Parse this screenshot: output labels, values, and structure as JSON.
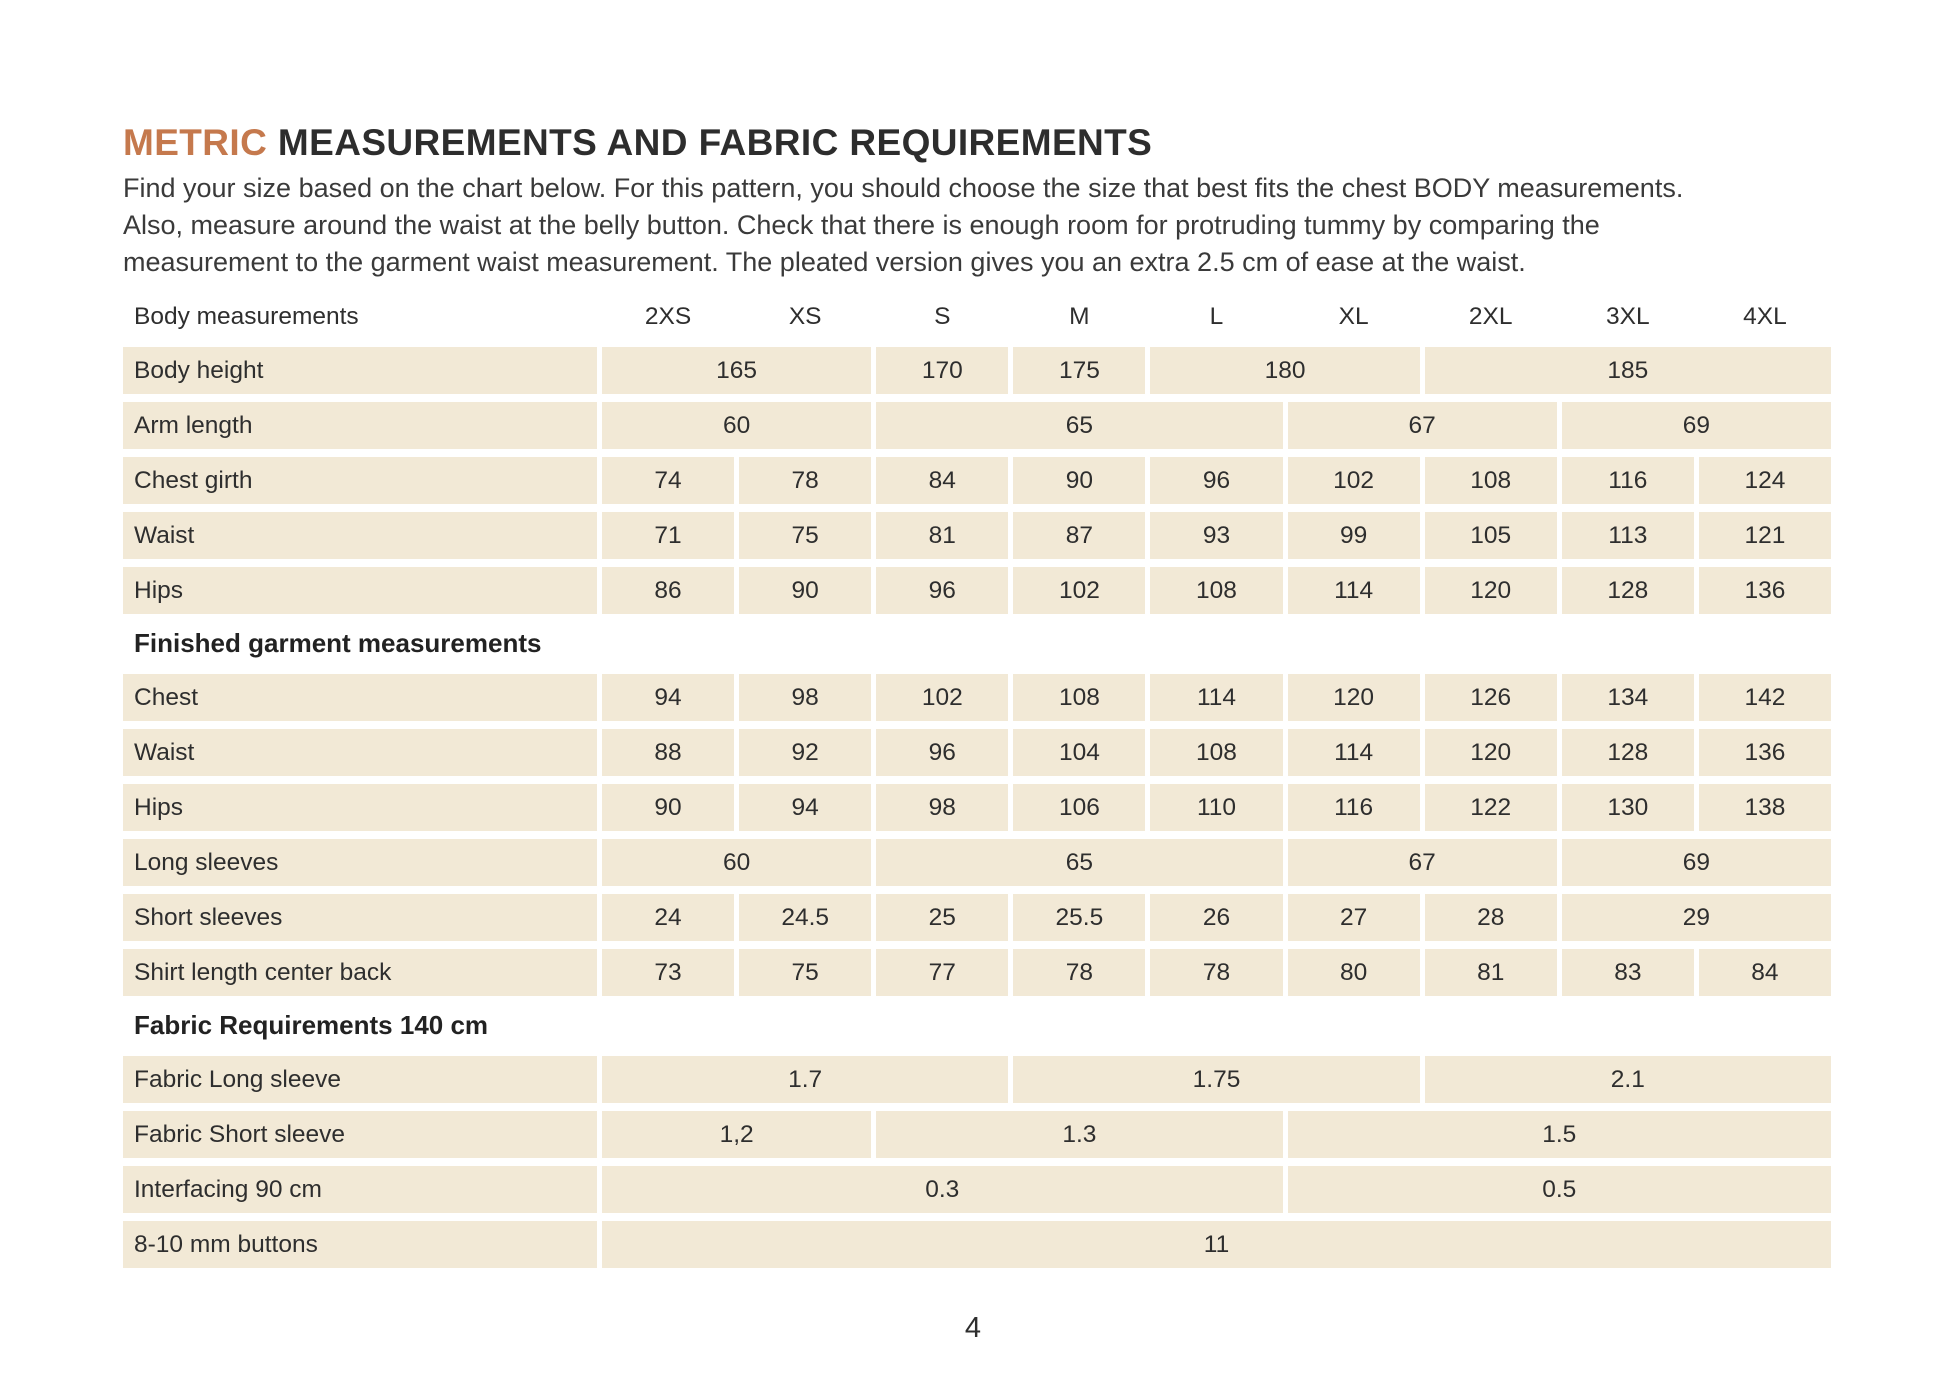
{
  "header": {
    "title_accent": "METRIC",
    "title_rest": " MEASUREMENTS AND FABRIC REQUIREMENTS",
    "intro": "Find your size based on the chart below. For this pattern, you should choose the size that best fits the chest BODY measurements.\nAlso, measure around the waist at the belly button. Check that there is enough room for protruding tummy by comparing the\nmeasurement to the garment waist measurement. The pleated version gives you an extra 2.5 cm of ease at the waist."
  },
  "colors": {
    "accent_orange": "#c5794d",
    "row_cream": "#f2e9d6",
    "text_dark": "#2d2d2d"
  },
  "table": {
    "header_label": "Body measurements",
    "sizes": [
      "2XS",
      "XS",
      "S",
      "M",
      "L",
      "XL",
      "2XL",
      "3XL",
      "4XL"
    ],
    "rows": [
      {
        "type": "row",
        "label": "Body height",
        "cells": [
          {
            "v": "165",
            "span": 2
          },
          {
            "v": "170",
            "span": 1
          },
          {
            "v": "175",
            "span": 1
          },
          {
            "v": "180",
            "span": 2
          },
          {
            "v": "185",
            "span": 3
          }
        ]
      },
      {
        "type": "row",
        "label": "Arm length",
        "cells": [
          {
            "v": "60",
            "span": 2
          },
          {
            "v": "65",
            "span": 3
          },
          {
            "v": "67",
            "span": 2
          },
          {
            "v": "69",
            "span": 2
          }
        ]
      },
      {
        "type": "row",
        "label": "Chest girth",
        "cells": [
          {
            "v": "74"
          },
          {
            "v": "78"
          },
          {
            "v": "84"
          },
          {
            "v": "90"
          },
          {
            "v": "96"
          },
          {
            "v": "102"
          },
          {
            "v": "108"
          },
          {
            "v": "116"
          },
          {
            "v": "124"
          }
        ]
      },
      {
        "type": "row",
        "label": "Waist",
        "cells": [
          {
            "v": "71"
          },
          {
            "v": "75"
          },
          {
            "v": "81"
          },
          {
            "v": "87"
          },
          {
            "v": "93"
          },
          {
            "v": "99"
          },
          {
            "v": "105"
          },
          {
            "v": "113"
          },
          {
            "v": "121"
          }
        ]
      },
      {
        "type": "row",
        "label": "Hips",
        "cells": [
          {
            "v": "86"
          },
          {
            "v": "90"
          },
          {
            "v": "96"
          },
          {
            "v": "102"
          },
          {
            "v": "108"
          },
          {
            "v": "114"
          },
          {
            "v": "120"
          },
          {
            "v": "128"
          },
          {
            "v": "136"
          }
        ]
      },
      {
        "type": "section",
        "label": "Finished garment measurements"
      },
      {
        "type": "row",
        "label": "Chest",
        "cells": [
          {
            "v": "94"
          },
          {
            "v": "98"
          },
          {
            "v": "102"
          },
          {
            "v": "108"
          },
          {
            "v": "114"
          },
          {
            "v": "120"
          },
          {
            "v": "126"
          },
          {
            "v": "134"
          },
          {
            "v": "142"
          }
        ]
      },
      {
        "type": "row",
        "label": "Waist",
        "cells": [
          {
            "v": "88"
          },
          {
            "v": "92"
          },
          {
            "v": "96"
          },
          {
            "v": "104"
          },
          {
            "v": "108"
          },
          {
            "v": "114"
          },
          {
            "v": "120"
          },
          {
            "v": "128"
          },
          {
            "v": "136"
          }
        ]
      },
      {
        "type": "row",
        "label": "Hips",
        "cells": [
          {
            "v": "90"
          },
          {
            "v": "94"
          },
          {
            "v": "98"
          },
          {
            "v": "106"
          },
          {
            "v": "110"
          },
          {
            "v": "116"
          },
          {
            "v": "122"
          },
          {
            "v": "130"
          },
          {
            "v": "138"
          }
        ]
      },
      {
        "type": "row",
        "label": "Long sleeves",
        "cells": [
          {
            "v": "60",
            "span": 2
          },
          {
            "v": "65",
            "span": 3
          },
          {
            "v": "67",
            "span": 2
          },
          {
            "v": "69",
            "span": 2
          }
        ]
      },
      {
        "type": "row",
        "label": "Short sleeves",
        "cells": [
          {
            "v": "24"
          },
          {
            "v": "24.5"
          },
          {
            "v": "25"
          },
          {
            "v": "25.5"
          },
          {
            "v": "26"
          },
          {
            "v": "27"
          },
          {
            "v": "28"
          },
          {
            "v": "29",
            "span": 2
          }
        ]
      },
      {
        "type": "row",
        "label": "Shirt length center back",
        "cells": [
          {
            "v": "73"
          },
          {
            "v": "75"
          },
          {
            "v": "77"
          },
          {
            "v": "78"
          },
          {
            "v": "78"
          },
          {
            "v": "80"
          },
          {
            "v": "81"
          },
          {
            "v": "83"
          },
          {
            "v": "84"
          }
        ]
      },
      {
        "type": "section",
        "label": "Fabric Requirements 140 cm"
      },
      {
        "type": "row",
        "label": "Fabric  Long sleeve",
        "cells": [
          {
            "v": "1.7",
            "span": 3
          },
          {
            "v": "1.75",
            "span": 3
          },
          {
            "v": "2.1",
            "span": 3
          }
        ]
      },
      {
        "type": "row",
        "label": "Fabric  Short sleeve",
        "cells": [
          {
            "v": "1,2",
            "span": 2
          },
          {
            "v": "1.3",
            "span": 3
          },
          {
            "v": "1.5",
            "span": 4
          }
        ]
      },
      {
        "type": "row",
        "label": "Interfacing 90 cm",
        "cells": [
          {
            "v": "0.3",
            "span": 5
          },
          {
            "v": "0.5",
            "span": 4
          }
        ]
      },
      {
        "type": "row",
        "label": "8-10 mm buttons",
        "cells": [
          {
            "v": "11",
            "span": 9
          }
        ]
      }
    ]
  },
  "footer": {
    "page_number": "4"
  }
}
